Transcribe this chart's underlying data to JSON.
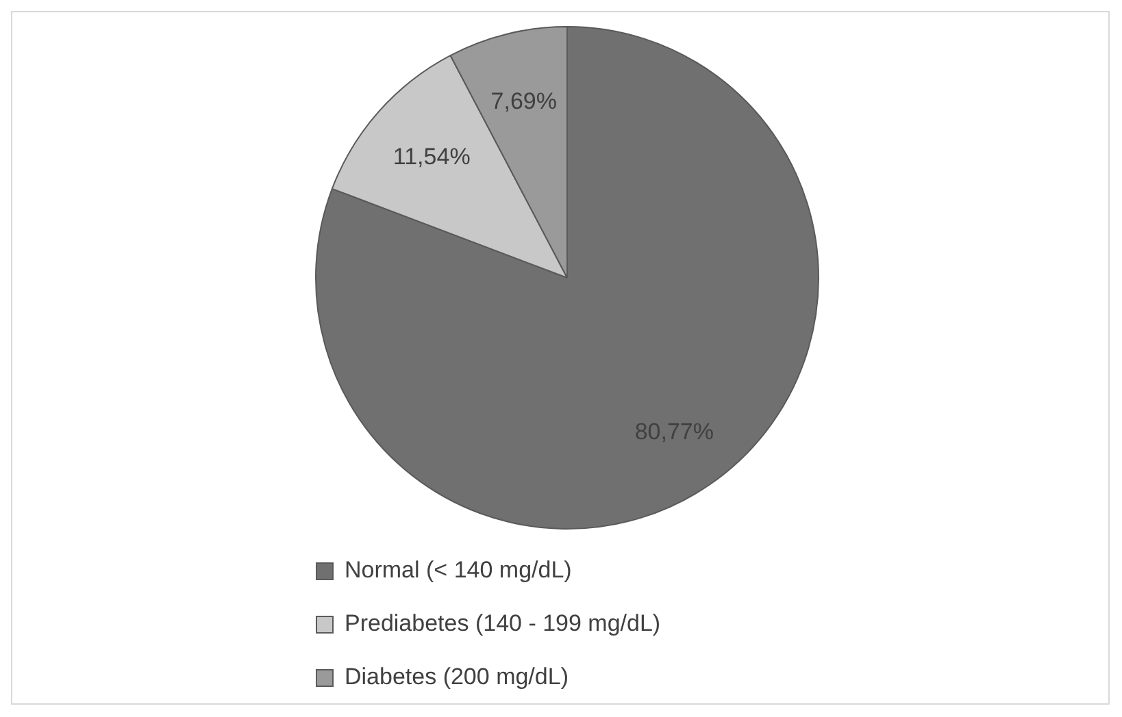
{
  "chart_data": {
    "type": "pie",
    "categories": [
      "Normal (< 140 mg/dL)",
      "Prediabetes (140 - 199 mg/dL)",
      "Diabetes (200 mg/dL)"
    ],
    "values": [
      80.77,
      11.54,
      7.69
    ],
    "value_labels": [
      "80,77%",
      "11,54%",
      "7,69%"
    ],
    "colors": [
      "#707070",
      "#c8c8c8",
      "#9a9a9a"
    ],
    "legend": "bottom"
  }
}
